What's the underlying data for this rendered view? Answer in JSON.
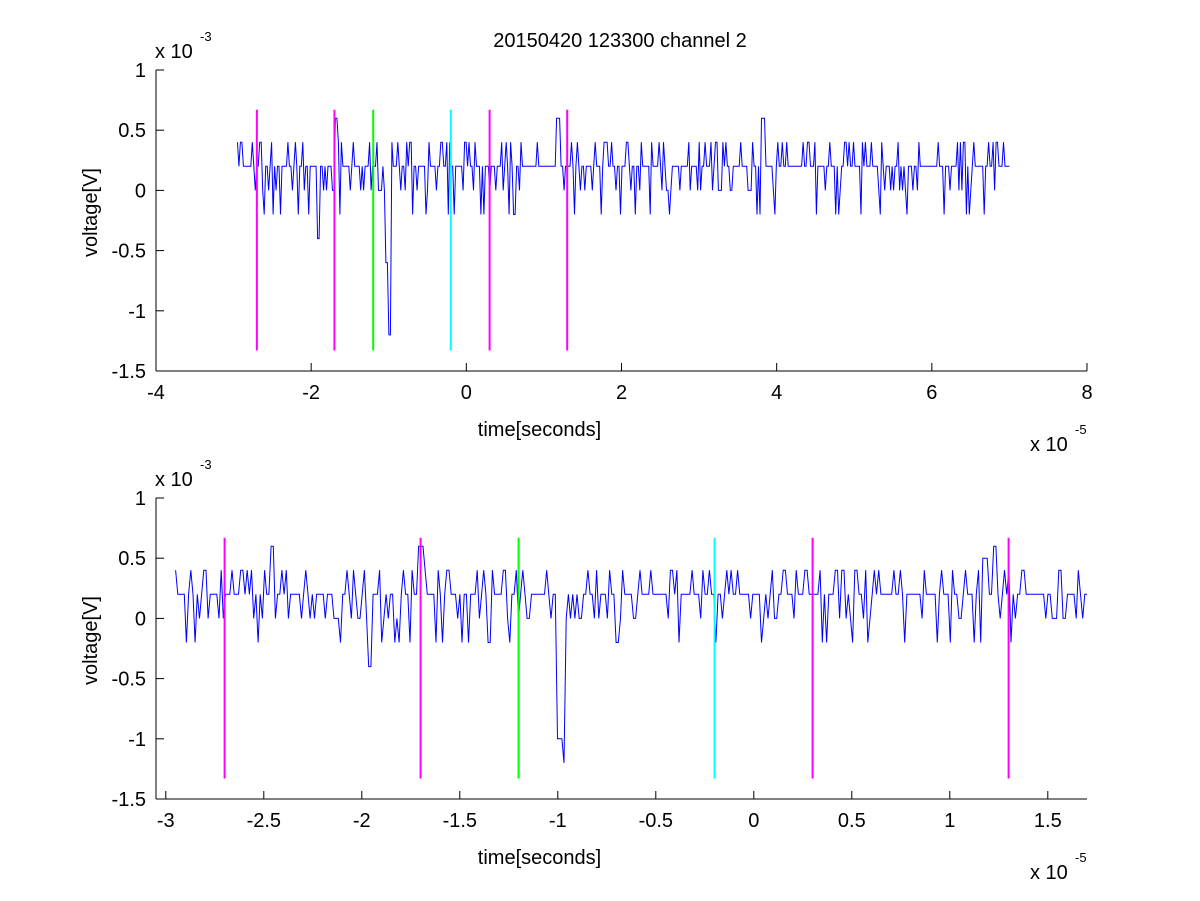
{
  "figure": {
    "title": "20150420 123300 channel 2"
  },
  "chart_data": [
    {
      "type": "line",
      "xlabel": "time[seconds]",
      "ylabel": "voltage[V]",
      "x_multiplier": "x 10",
      "x_exponent": "-5",
      "y_multiplier": "x 10",
      "y_exponent": "-3",
      "xlim": [
        -4,
        8
      ],
      "ylim": [
        -1.5,
        1
      ],
      "x_ticks": [
        -4,
        -2,
        0,
        2,
        4,
        6,
        8
      ],
      "y_ticks": [
        -1.5,
        -1,
        -0.5,
        0,
        0.5,
        1
      ],
      "x_tick_labels": [
        "-4",
        "-2",
        "0",
        "2",
        "4",
        "6",
        "8"
      ],
      "y_tick_labels": [
        "-1.5",
        "-1",
        "-0.5",
        "0",
        "0.5",
        "1"
      ],
      "grid": false,
      "series_color": "#0000ff",
      "signal_range": [
        -2.95,
        7.0
      ],
      "events": [
        {
          "x": -2.7,
          "color": "#ff00ff"
        },
        {
          "x": -1.7,
          "color": "#ff00ff"
        },
        {
          "x": -1.2,
          "color": "#00ff00"
        },
        {
          "x": -0.2,
          "color": "#00ffff"
        },
        {
          "x": 0.3,
          "color": "#ff00ff"
        },
        {
          "x": 1.3,
          "color": "#ff00ff"
        }
      ],
      "event_line_range": [
        -1.33,
        0.67
      ],
      "spikes": [
        {
          "x": -1.91,
          "y": -0.4
        },
        {
          "x": -1.0,
          "y": -1.2
        },
        {
          "x": -1.03,
          "y": -0.6
        },
        {
          "x": 3.82,
          "y": 0.6
        },
        {
          "x": 1.18,
          "y": 0.6
        },
        {
          "x": -1.68,
          "y": 0.6
        }
      ]
    },
    {
      "type": "line",
      "xlabel": "time[seconds]",
      "ylabel": "voltage[V]",
      "x_multiplier": "x 10",
      "x_exponent": "-5",
      "y_multiplier": "x 10",
      "y_exponent": "-3",
      "xlim": [
        -3.05,
        1.7
      ],
      "ylim": [
        -1.5,
        1
      ],
      "x_ticks": [
        -3,
        -2.5,
        -2,
        -1.5,
        -1,
        -0.5,
        0,
        0.5,
        1,
        1.5
      ],
      "y_ticks": [
        -1.5,
        -1,
        -0.5,
        0,
        0.5,
        1
      ],
      "x_tick_labels": [
        "-3",
        "-2.5",
        "-2",
        "-1.5",
        "-1",
        "-0.5",
        "0",
        "0.5",
        "1",
        "1.5"
      ],
      "y_tick_labels": [
        "-1.5",
        "-1",
        "-0.5",
        "0",
        "0.5",
        "1"
      ],
      "grid": false,
      "series_color": "#0000ff",
      "signal_range": [
        -2.95,
        1.7
      ],
      "events": [
        {
          "x": -2.7,
          "color": "#ff00ff"
        },
        {
          "x": -1.7,
          "color": "#ff00ff"
        },
        {
          "x": -1.2,
          "color": "#00ff00"
        },
        {
          "x": -0.2,
          "color": "#00ffff"
        },
        {
          "x": 0.3,
          "color": "#ff00ff"
        },
        {
          "x": 1.3,
          "color": "#ff00ff"
        }
      ],
      "event_line_range": [
        -1.33,
        0.67
      ],
      "spikes": [
        {
          "x": -2.46,
          "y": 0.6
        },
        {
          "x": -1.96,
          "y": -0.4
        },
        {
          "x": -1.7,
          "y": 0.6
        },
        {
          "x": -0.98,
          "y": -1.2
        },
        {
          "x": -0.99,
          "y": -1.0
        },
        {
          "x": 1.23,
          "y": 0.6
        },
        {
          "x": 1.18,
          "y": 0.5
        }
      ]
    }
  ]
}
